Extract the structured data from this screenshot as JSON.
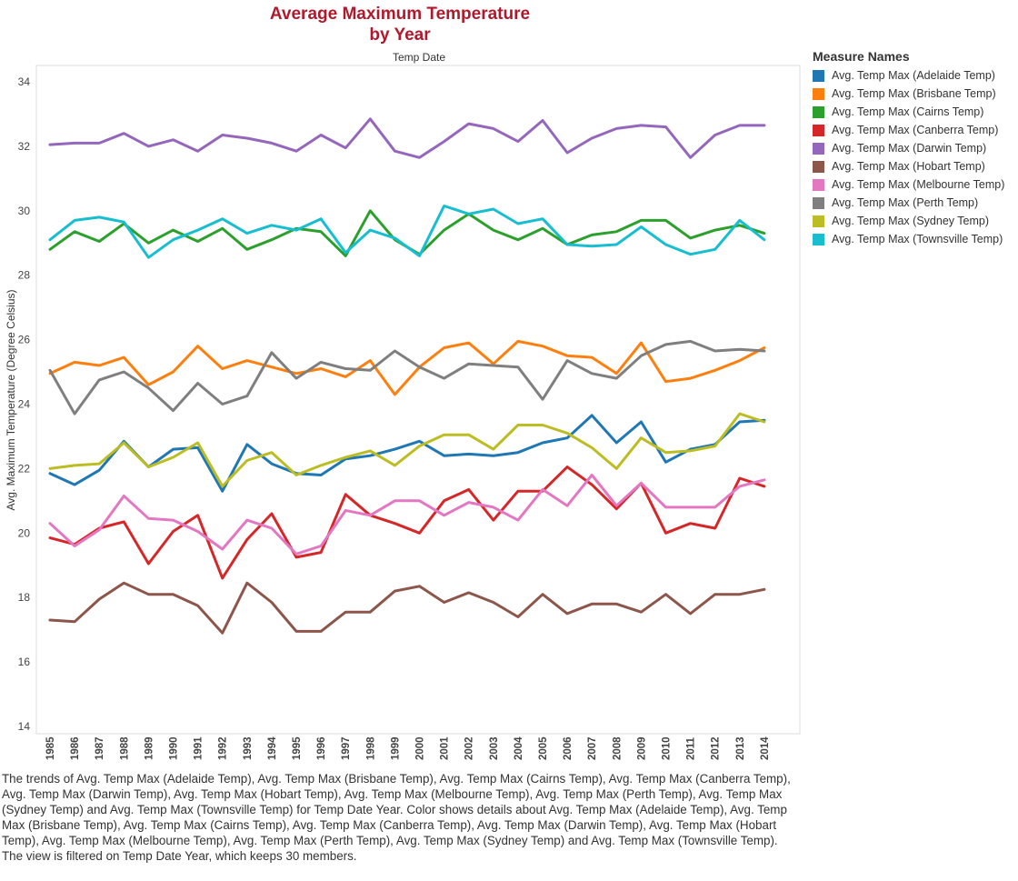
{
  "header": {
    "title_line1": "Average Maximum Temperature",
    "title_line2": "by Year"
  },
  "legend": {
    "title": "Measure Names"
  },
  "caption": "The trends of Avg. Temp Max (Adelaide Temp), Avg. Temp Max (Brisbane Temp), Avg. Temp Max (Cairns Temp), Avg. Temp Max (Canberra Temp), Avg. Temp Max (Darwin Temp), Avg. Temp Max (Hobart Temp), Avg. Temp Max (Melbourne Temp), Avg. Temp Max (Perth Temp), Avg. Temp Max (Sydney Temp) and Avg. Temp Max (Townsville Temp) for Temp Date Year.  Color shows details about Avg. Temp Max (Adelaide Temp), Avg. Temp Max (Brisbane Temp), Avg. Temp Max (Cairns Temp), Avg. Temp Max (Canberra Temp), Avg. Temp Max (Darwin Temp), Avg. Temp Max (Hobart Temp), Avg. Temp Max (Melbourne Temp), Avg. Temp Max (Perth Temp), Avg. Temp Max (Sydney Temp) and Avg. Temp Max (Townsville Temp). The view is filtered on Temp Date Year, which keeps 30 members.",
  "chart_data": {
    "type": "line",
    "title": "Average Maximum Temperature by Year",
    "xlabel": "Temp Date",
    "ylabel": "Avg. Maximum Temperature (Degree Celsius)",
    "ylim": [
      14,
      34.5
    ],
    "yticks": [
      14,
      16,
      18,
      20,
      22,
      24,
      26,
      28,
      30,
      32,
      34
    ],
    "grid": false,
    "legend_position": "right",
    "x": [
      "1985",
      "1986",
      "1987",
      "1988",
      "1989",
      "1990",
      "1991",
      "1992",
      "1993",
      "1994",
      "1995",
      "1996",
      "1997",
      "1998",
      "1999",
      "2000",
      "2001",
      "2002",
      "2003",
      "2004",
      "2005",
      "2006",
      "2007",
      "2008",
      "2009",
      "2010",
      "2011",
      "2012",
      "2013",
      "2014"
    ],
    "series": [
      {
        "name": "Avg. Temp Max (Adelaide Temp)",
        "color": "#1f77b4",
        "values": [
          21.85,
          21.5,
          21.95,
          22.85,
          22.05,
          22.6,
          22.65,
          21.3,
          22.75,
          22.15,
          21.85,
          21.8,
          22.3,
          22.4,
          22.6,
          22.85,
          22.4,
          22.45,
          22.4,
          22.5,
          22.8,
          22.95,
          23.65,
          22.8,
          23.45,
          22.2,
          22.6,
          22.75,
          23.45,
          23.5
        ]
      },
      {
        "name": "Avg. Temp Max (Brisbane Temp)",
        "color": "#ff7f0e",
        "values": [
          24.95,
          25.3,
          25.2,
          25.45,
          24.6,
          25.0,
          25.8,
          25.1,
          25.35,
          25.15,
          24.95,
          25.1,
          24.85,
          25.35,
          24.3,
          25.15,
          25.75,
          25.9,
          25.25,
          25.95,
          25.8,
          25.5,
          25.45,
          24.95,
          25.9,
          24.7,
          24.8,
          25.05,
          25.35,
          25.75
        ]
      },
      {
        "name": "Avg. Temp Max (Cairns Temp)",
        "color": "#2ca02c",
        "values": [
          28.8,
          29.35,
          29.05,
          29.6,
          29.0,
          29.4,
          29.05,
          29.45,
          28.8,
          29.1,
          29.45,
          29.35,
          28.6,
          30.0,
          29.1,
          28.65,
          29.4,
          29.9,
          29.4,
          29.1,
          29.45,
          28.95,
          29.25,
          29.35,
          29.7,
          29.7,
          29.15,
          29.4,
          29.55,
          29.3
        ]
      },
      {
        "name": "Avg. Temp Max (Canberra Temp)",
        "color": "#d62728",
        "values": [
          19.85,
          19.65,
          20.15,
          20.35,
          19.05,
          20.05,
          20.55,
          18.6,
          19.8,
          20.6,
          19.25,
          19.4,
          21.2,
          20.55,
          20.3,
          20.0,
          21.0,
          21.35,
          20.4,
          21.3,
          21.3,
          22.05,
          21.5,
          20.75,
          21.55,
          20.0,
          20.3,
          20.15,
          21.7,
          21.45
        ]
      },
      {
        "name": "Avg. Temp Max (Darwin Temp)",
        "color": "#9467bd",
        "values": [
          32.05,
          32.1,
          32.1,
          32.4,
          32.0,
          32.2,
          31.85,
          32.35,
          32.25,
          32.1,
          31.85,
          32.35,
          31.95,
          32.85,
          31.85,
          31.65,
          32.15,
          32.7,
          32.55,
          32.15,
          32.8,
          31.8,
          32.25,
          32.55,
          32.65,
          32.6,
          31.65,
          32.35,
          32.65,
          32.65
        ]
      },
      {
        "name": "Avg. Temp Max (Hobart Temp)",
        "color": "#8c564b",
        "values": [
          17.3,
          17.25,
          17.95,
          18.45,
          18.1,
          18.1,
          17.75,
          16.9,
          18.45,
          17.85,
          16.95,
          16.95,
          17.55,
          17.55,
          18.2,
          18.35,
          17.85,
          18.15,
          17.85,
          17.4,
          18.1,
          17.5,
          17.8,
          17.8,
          17.55,
          18.1,
          17.5,
          18.1,
          18.1,
          18.25
        ]
      },
      {
        "name": "Avg. Temp Max (Melbourne Temp)",
        "color": "#e377c2",
        "values": [
          20.3,
          19.6,
          20.1,
          21.15,
          20.45,
          20.4,
          20.05,
          19.5,
          20.4,
          20.15,
          19.35,
          19.6,
          20.7,
          20.55,
          21.0,
          21.0,
          20.55,
          20.95,
          20.8,
          20.4,
          21.35,
          20.85,
          21.8,
          20.85,
          21.55,
          20.8,
          20.8,
          20.8,
          21.45,
          21.65
        ]
      },
      {
        "name": "Avg. Temp Max (Perth Temp)",
        "color": "#7f7f7f",
        "values": [
          25.05,
          23.7,
          24.75,
          25.0,
          24.5,
          23.8,
          24.65,
          24.0,
          24.25,
          25.6,
          24.8,
          25.3,
          25.1,
          25.05,
          25.65,
          25.15,
          24.8,
          25.25,
          25.2,
          25.15,
          24.15,
          25.35,
          24.95,
          24.8,
          25.5,
          25.85,
          25.95,
          25.65,
          25.7,
          25.65
        ]
      },
      {
        "name": "Avg. Temp Max (Sydney Temp)",
        "color": "#bcbd22",
        "values": [
          22.0,
          22.1,
          22.15,
          22.8,
          22.05,
          22.35,
          22.8,
          21.45,
          22.25,
          22.5,
          21.8,
          22.1,
          22.35,
          22.55,
          22.1,
          22.7,
          23.05,
          23.05,
          22.6,
          23.35,
          23.35,
          23.1,
          22.65,
          22.0,
          22.95,
          22.5,
          22.55,
          22.7,
          23.7,
          23.45
        ]
      },
      {
        "name": "Avg. Temp Max (Townsville Temp)",
        "color": "#17becf",
        "values": [
          29.1,
          29.7,
          29.8,
          29.65,
          28.55,
          29.1,
          29.4,
          29.75,
          29.3,
          29.55,
          29.4,
          29.75,
          28.7,
          29.4,
          29.15,
          28.6,
          30.15,
          29.9,
          30.05,
          29.6,
          29.75,
          28.95,
          28.9,
          28.95,
          29.5,
          28.95,
          28.65,
          28.8,
          29.7,
          29.1
        ]
      }
    ]
  }
}
